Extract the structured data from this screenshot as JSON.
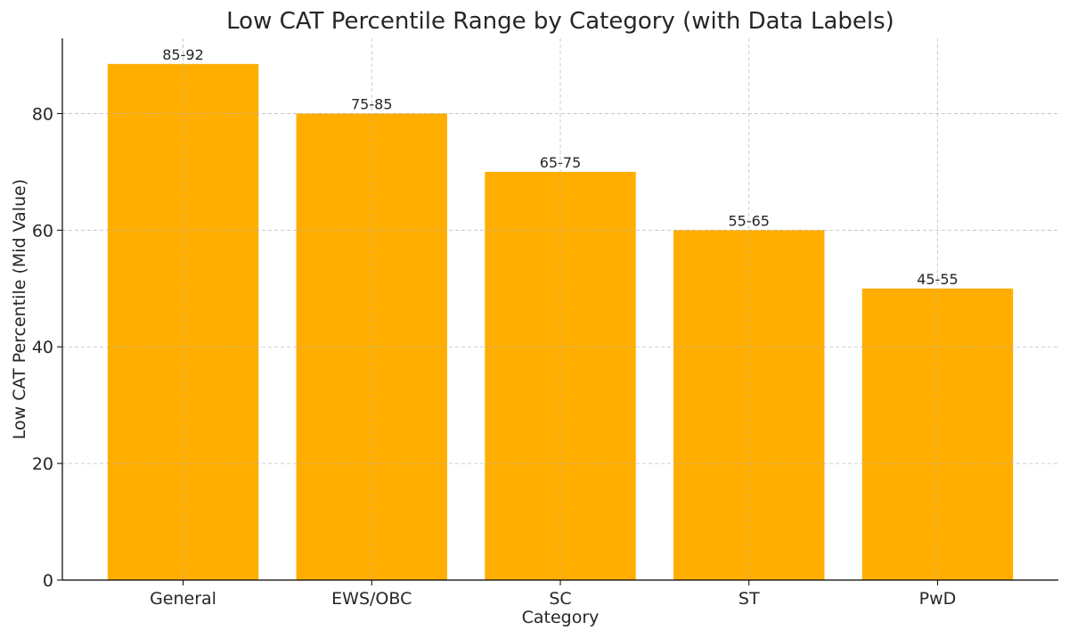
{
  "chart_data": {
    "type": "bar",
    "title": "Low CAT Percentile Range by Category (with Data Labels)",
    "xlabel": "Category",
    "ylabel": "Low CAT Percentile (Mid Value)",
    "categories": [
      "General",
      "EWS/OBC",
      "SC",
      "ST",
      "PwD"
    ],
    "values": [
      88.5,
      80,
      70,
      60,
      50
    ],
    "data_labels": [
      "85-92",
      "75-85",
      "65-75",
      "55-65",
      "45-55"
    ],
    "ylim": [
      0,
      92.9
    ],
    "yticks": [
      0,
      20,
      40,
      60,
      80
    ],
    "grid": true,
    "bar_color": "#FFAE00"
  }
}
